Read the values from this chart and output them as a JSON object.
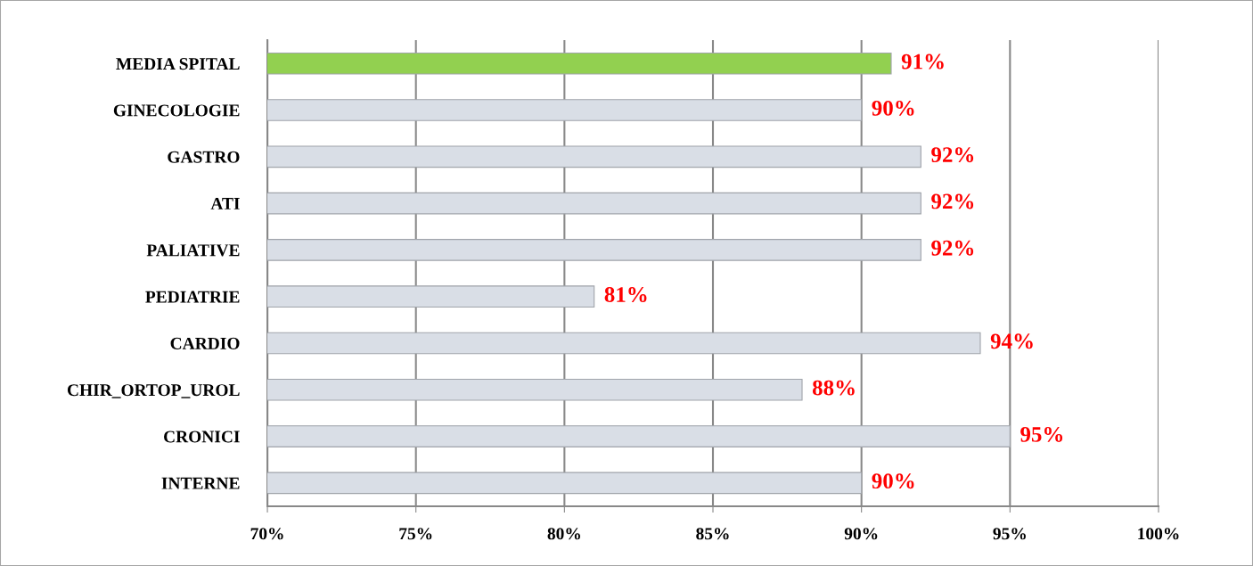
{
  "chart_data": {
    "type": "bar",
    "orientation": "horizontal",
    "categories": [
      "MEDIA SPITAL",
      "GINECOLOGIE",
      "GASTRO",
      "ATI",
      "PALIATIVE",
      "PEDIATRIE",
      "CARDIO",
      "CHIR_ORTOP_UROL",
      "CRONICI",
      "INTERNE"
    ],
    "values": [
      91,
      90,
      92,
      92,
      92,
      81,
      94,
      88,
      95,
      90
    ],
    "value_labels": [
      "91%",
      "90%",
      "92%",
      "92%",
      "92%",
      "81%",
      "94%",
      "88%",
      "95%",
      "90%"
    ],
    "colors": [
      "#92d050",
      "#d9dee6",
      "#d9dee6",
      "#d9dee6",
      "#d9dee6",
      "#d9dee6",
      "#d9dee6",
      "#d9dee6",
      "#d9dee6",
      "#d9dee6"
    ],
    "xlim": [
      70,
      100
    ],
    "xticks": [
      {
        "value": 70,
        "label": "70%"
      },
      {
        "value": 75,
        "label": "75%"
      },
      {
        "value": 80,
        "label": "80%"
      },
      {
        "value": 85,
        "label": "85%"
      },
      {
        "value": 90,
        "label": "90%"
      },
      {
        "value": 95,
        "label": "95%"
      },
      {
        "value": 100,
        "label": "100%"
      }
    ],
    "grid": "x",
    "legend": false
  }
}
